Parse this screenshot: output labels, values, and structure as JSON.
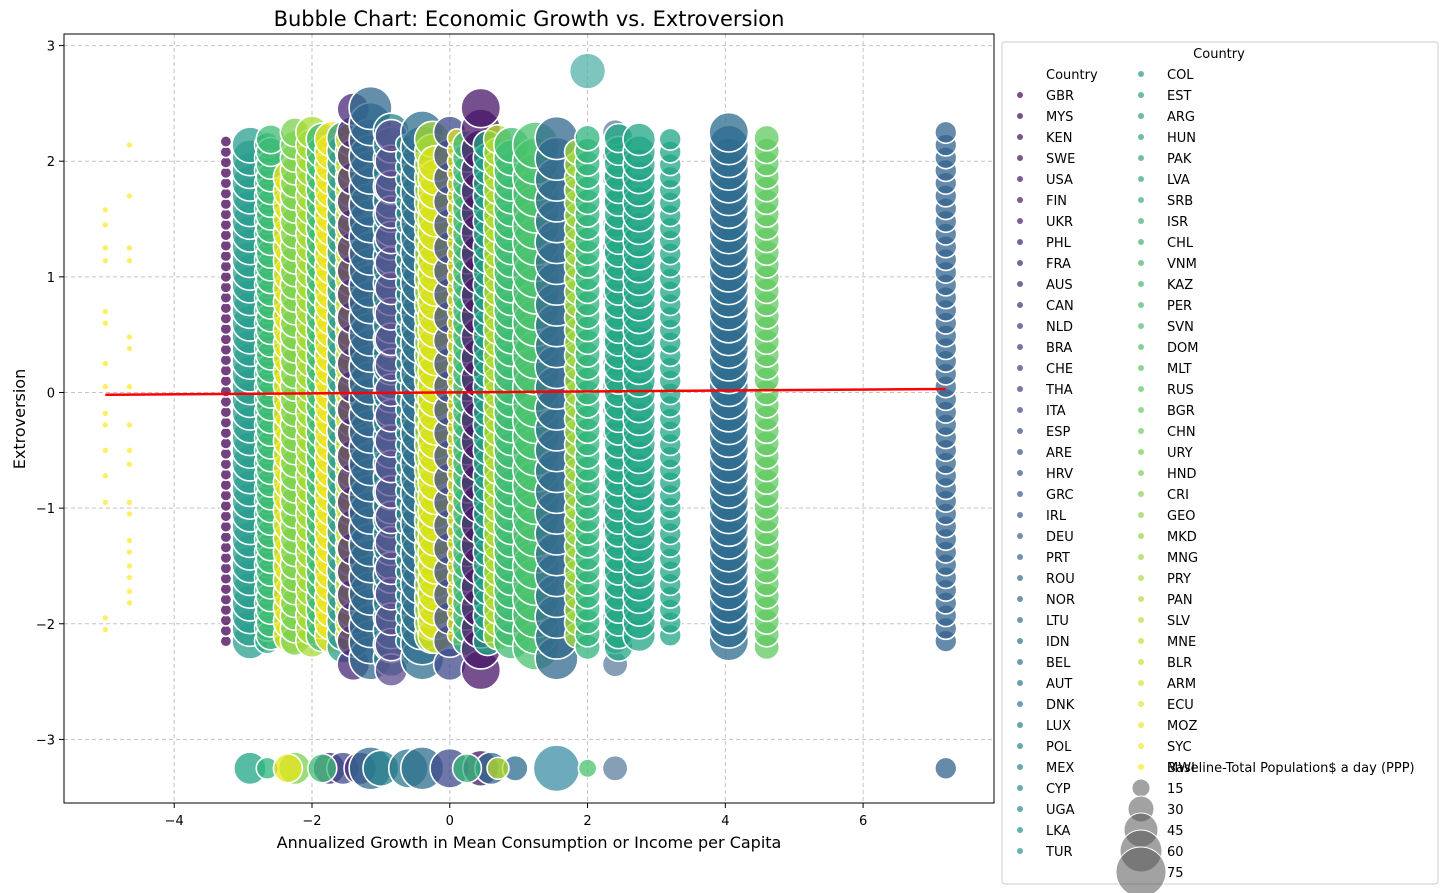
{
  "chart_data": {
    "type": "scatter",
    "title": "Bubble Chart: Economic Growth vs. Extroversion",
    "xlabel": "Annualized Growth in Mean Consumption or Income per Capita",
    "ylabel": "Extroversion",
    "xlim": [
      -5.6,
      7.9
    ],
    "ylim": [
      -3.55,
      3.1
    ],
    "xticks": [
      -4,
      -2,
      0,
      2,
      4,
      6
    ],
    "xtick_labels": [
      "−4",
      "−2",
      "0",
      "2",
      "4",
      "6"
    ],
    "yticks": [
      -3,
      -2,
      -1,
      0,
      1,
      2,
      3
    ],
    "ytick_labels": [
      "−3",
      "−2",
      "−1",
      "0",
      "1",
      "2",
      "3"
    ],
    "grid": true,
    "colormap": "viridis",
    "trend_line": {
      "color": "#ff0000",
      "x": [
        -5.0,
        7.2
      ],
      "y": [
        -0.02,
        0.03
      ]
    },
    "legend": {
      "placement": "outside-right",
      "title": "Country",
      "hue_header": "Country",
      "countries": [
        "GBR",
        "MYS",
        "KEN",
        "SWE",
        "USA",
        "FIN",
        "UKR",
        "PHL",
        "FRA",
        "AUS",
        "CAN",
        "NLD",
        "BRA",
        "CHE",
        "THA",
        "ITA",
        "ESP",
        "ARE",
        "HRV",
        "GRC",
        "IRL",
        "DEU",
        "PRT",
        "ROU",
        "NOR",
        "LTU",
        "IDN",
        "BEL",
        "AUT",
        "DNK",
        "LUX",
        "POL",
        "MEX",
        "CYP",
        "UGA",
        "LKA",
        "TUR",
        "COL",
        "EST",
        "ARG",
        "HUN",
        "PAK",
        "LVA",
        "SRB",
        "ISR",
        "CHL",
        "VNM",
        "KAZ",
        "PER",
        "SVN",
        "DOM",
        "MLT",
        "RUS",
        "BGR",
        "CHN",
        "URY",
        "HND",
        "CRI",
        "GEO",
        "MKD",
        "MNG",
        "PRY",
        "PAN",
        "SLV",
        "MNE",
        "BLR",
        "ARM",
        "ECU",
        "MOZ",
        "SYC",
        "MWI"
      ],
      "size_header": "Baseline-Total Population$ a day (PPP)",
      "size_values": [
        "15",
        "30",
        "45",
        "60",
        "75"
      ]
    },
    "series": [
      {
        "x": -5.0,
        "size": 1,
        "color": "#fde725",
        "y": [
          -2.05,
          -1.95,
          -0.95,
          -0.72,
          -0.5,
          -0.28,
          -0.18,
          0.05,
          0.25,
          0.6,
          0.7,
          1.14,
          1.25,
          1.45,
          1.58
        ]
      },
      {
        "x": -4.65,
        "size": 1,
        "color": "#fde725",
        "y": [
          -1.82,
          -1.72,
          -1.6,
          -1.5,
          -1.38,
          -1.28,
          -1.05,
          -0.95,
          -0.62,
          -0.5,
          -0.28,
          0.05,
          0.38,
          0.48,
          1.14,
          1.25,
          1.7,
          2.14
        ]
      },
      {
        "x": -3.25,
        "size": 2,
        "color": "#440154",
        "y": "col:-2.15,2.25,0.09"
      },
      {
        "x": -2.9,
        "size": 9,
        "color": "#2a9d8f",
        "y": "col:-2.15,2.22,0.11"
      },
      {
        "x": -2.65,
        "size": 6,
        "color": "#22a884",
        "y": "col:-2.15,2.22,0.11"
      },
      {
        "x": -2.6,
        "size": 7,
        "color": "#3dbc74",
        "y": "col:-2.1,2.2,0.11"
      },
      {
        "x": -2.3,
        "size": 9,
        "color": "#e7e419",
        "y": "col:-2.1,1.95,0.12"
      },
      {
        "x": -2.25,
        "size": 7,
        "color": "#7ad151",
        "y": "col:-2.15,2.25,0.11"
      },
      {
        "x": -2.0,
        "size": 8,
        "color": "#a5db36",
        "y": "col:-2.15,2.25,0.11"
      },
      {
        "x": -1.85,
        "size": 8,
        "color": "#3dbc74",
        "y": "col:-2.1,2.2,0.11"
      },
      {
        "x": -1.7,
        "size": 9,
        "color": "#f1e51d",
        "y": "col:-2.1,2.2,0.11"
      },
      {
        "x": -1.55,
        "size": 8,
        "color": "#2a9d8f",
        "y": "col:-2.2,2.25,0.11"
      },
      {
        "x": -1.4,
        "size": 9,
        "color": "#d0e11c",
        "y": "col:-2.1,2.2,0.11"
      },
      {
        "x": -1.4,
        "size": 8,
        "color": "#482878",
        "y": "col:-2.35,2.45,0.2"
      },
      {
        "x": -1.15,
        "size": 11,
        "color": "#31688e",
        "y": "col:-2.3,2.5,0.14"
      },
      {
        "x": -0.85,
        "size": 9,
        "color": "#26828e",
        "y": "col:-2.3,2.35,0.12"
      },
      {
        "x": -0.85,
        "size": 8,
        "color": "#5c4d8f",
        "y": "col:-2.4,2.4,0.22"
      },
      {
        "x": -0.65,
        "size": 4,
        "color": "#21918c",
        "y": "col:-2.15,2.2,0.1"
      },
      {
        "x": -0.4,
        "size": 11,
        "color": "#2e6f8e",
        "y": "col:-2.3,2.3,0.13"
      },
      {
        "x": -0.25,
        "size": 9,
        "color": "#a5db36",
        "y": "col:-2.1,2.2,0.11"
      },
      {
        "x": -0.2,
        "size": 9,
        "color": "#d8e219",
        "y": "col:-2.1,2.0,0.12"
      },
      {
        "x": 0.0,
        "size": 8,
        "color": "#3e4a89",
        "y": "col:-2.35,2.35,0.2"
      },
      {
        "x": 0.1,
        "size": 4,
        "color": "#dde318",
        "y": "col:-2.1,2.2,0.1"
      },
      {
        "x": 0.25,
        "size": 7,
        "color": "#35b779",
        "y": "col:-2.15,2.2,0.11"
      },
      {
        "x": 0.45,
        "size": 10,
        "color": "#481668",
        "y": "col:-2.4,2.5,0.18"
      },
      {
        "x": 0.55,
        "size": 7,
        "color": "#20a486",
        "y": "col:-2.15,2.2,0.11"
      },
      {
        "x": 0.7,
        "size": 7,
        "color": "#b5de2b",
        "y": "col:-2.1,2.2,0.11"
      },
      {
        "x": 0.9,
        "size": 9,
        "color": "#3dbc74",
        "y": "col:-2.15,2.2,0.11"
      },
      {
        "x": 1.25,
        "size": 12,
        "color": "#4ac16d",
        "y": "col:-2.2,2.15,0.14"
      },
      {
        "x": 1.55,
        "size": 11,
        "color": "#31688e",
        "y": "col:-2.3,2.2,0.18"
      },
      {
        "x": 1.85,
        "size": 6,
        "color": "#a0da39",
        "y": "col:-2.1,2.1,0.11"
      },
      {
        "x": 2.0,
        "size": 6,
        "color": "#2fb47c",
        "y": "col:-2.2,2.3,0.11"
      },
      {
        "x": 2.4,
        "size": 6,
        "color": "#5e7f9e",
        "y": "col:-2.35,2.35,0.2"
      },
      {
        "x": 2.45,
        "size": 7,
        "color": "#22a884",
        "y": "col:-2.2,2.25,0.11"
      },
      {
        "x": 2.75,
        "size": 8,
        "color": "#20a486",
        "y": "col:-2.1,2.2,0.11"
      },
      {
        "x": 3.2,
        "size": 5,
        "color": "#20a486",
        "y": "col:-2.1,2.2,0.11"
      },
      {
        "x": 4.05,
        "size": 10,
        "color": "#2c6b8f",
        "y": "col:-2.15,2.25,0.11"
      },
      {
        "x": 4.6,
        "size": 6,
        "color": "#60ca60",
        "y": "col:-2.2,2.25,0.11"
      },
      {
        "x": 7.2,
        "size": 5,
        "color": "#33638d",
        "y": "col:-2.15,2.35,0.11"
      },
      {
        "x": 2.0,
        "size": 9,
        "color": "#52b2a8",
        "y": [
          2.78
        ]
      },
      {
        "x": -2.9,
        "size": 8,
        "color": "#20a486",
        "y": [
          -3.25
        ]
      },
      {
        "x": -2.65,
        "size": 5,
        "color": "#2fb47c",
        "y": [
          -3.25
        ]
      },
      {
        "x": -2.25,
        "size": 8,
        "color": "#7ad151",
        "y": [
          -3.25
        ]
      },
      {
        "x": -1.75,
        "size": 8,
        "color": "#482878",
        "y": [
          -3.25
        ]
      },
      {
        "x": -1.55,
        "size": 8,
        "color": "#3e4a89",
        "y": [
          -3.25
        ]
      },
      {
        "x": -1.3,
        "size": 8,
        "color": "#482878",
        "y": [
          -3.25
        ]
      },
      {
        "x": -1.15,
        "size": 11,
        "color": "#31688e",
        "y": [
          -3.25
        ]
      },
      {
        "x": -1.0,
        "size": 9,
        "color": "#26828e",
        "y": [
          -3.25
        ]
      },
      {
        "x": -0.6,
        "size": 10,
        "color": "#2a788e",
        "y": [
          -3.25
        ]
      },
      {
        "x": -0.4,
        "size": 11,
        "color": "#2e6f8e",
        "y": [
          -3.25
        ]
      },
      {
        "x": 0.0,
        "size": 10,
        "color": "#3e4a89",
        "y": [
          -3.25
        ]
      },
      {
        "x": 0.45,
        "size": 9,
        "color": "#481668",
        "y": [
          -3.25
        ]
      },
      {
        "x": 0.6,
        "size": 8,
        "color": "#31688e",
        "y": [
          -3.25
        ]
      },
      {
        "x": 0.95,
        "size": 6,
        "color": "#2c6b8f",
        "y": [
          -3.25
        ]
      },
      {
        "x": 1.55,
        "size": 12,
        "color": "#3b8ea5",
        "y": [
          -3.25
        ]
      },
      {
        "x": 2.4,
        "size": 6,
        "color": "#5e7f9e",
        "y": [
          -3.25
        ]
      },
      {
        "x": -2.35,
        "size": 7,
        "color": "#e7e419",
        "y": [
          -3.25
        ]
      },
      {
        "x": -1.85,
        "size": 7,
        "color": "#3dbc74",
        "y": [
          -3.25
        ]
      },
      {
        "x": 0.25,
        "size": 7,
        "color": "#35b779",
        "y": [
          -3.25
        ]
      },
      {
        "x": 0.7,
        "size": 5,
        "color": "#b5de2b",
        "y": [
          -3.25
        ]
      },
      {
        "x": 2.0,
        "size": 4,
        "color": "#4ac16d",
        "y": [
          -3.25
        ]
      },
      {
        "x": 7.2,
        "size": 5,
        "color": "#33638d",
        "y": [
          -3.25
        ]
      }
    ]
  }
}
